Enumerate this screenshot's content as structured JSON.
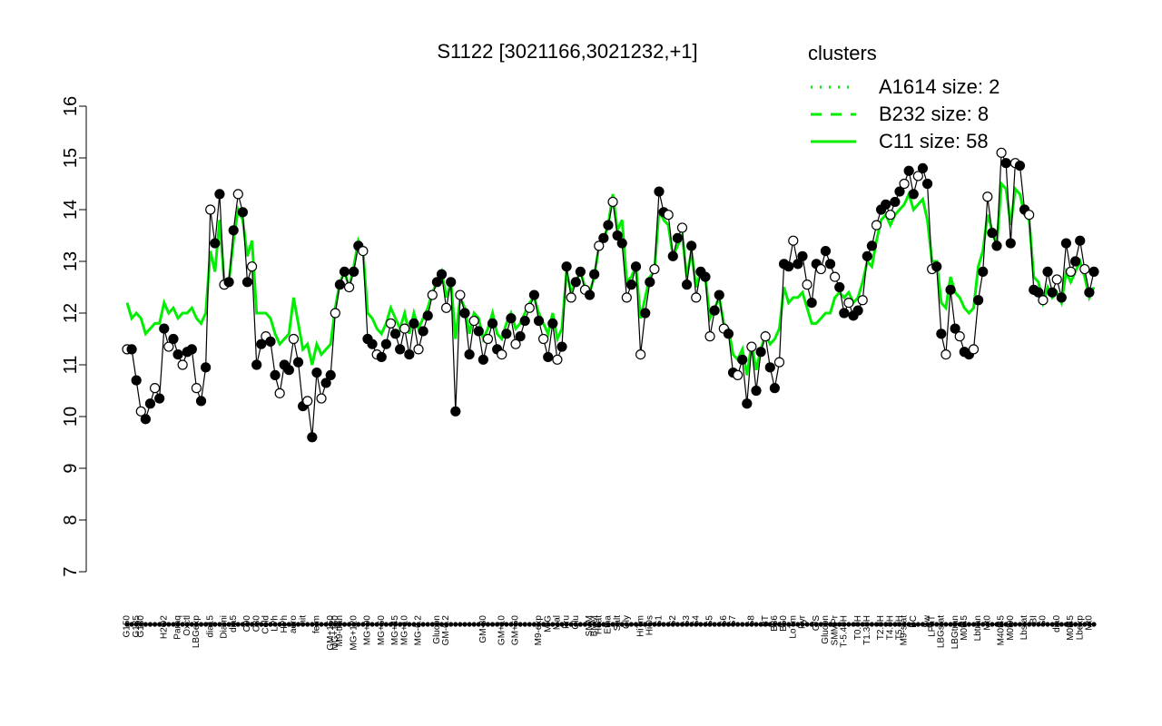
{
  "chart_data": {
    "type": "line",
    "title": "S1122 [3021166,3021232,+1]",
    "ylim": [
      7,
      16
    ],
    "yticks": [
      7,
      8,
      9,
      10,
      11,
      12,
      13,
      14,
      15,
      16
    ],
    "categories": [
      "G150",
      null,
      "G135",
      "G180",
      null,
      null,
      null,
      null,
      "H2O2",
      null,
      null,
      "Paraq",
      null,
      "Oxctl",
      null,
      "LBGexp",
      null,
      null,
      "dia15",
      null,
      null,
      "Diami",
      null,
      "dia5",
      null,
      null,
      "C90",
      null,
      "C30",
      null,
      "Cold",
      null,
      "LPh",
      null,
      "HPh",
      null,
      "aero",
      null,
      "nit",
      null,
      null,
      "ferm",
      null,
      null,
      "GM+150",
      "MG+150",
      "M9-tran",
      null,
      null,
      "MG+120",
      null,
      null,
      "MG+90",
      null,
      null,
      "MG+60",
      null,
      null,
      "MG+45",
      null,
      "MG+10",
      null,
      null,
      "MG-0.2",
      null,
      null,
      null,
      "Glucon",
      null,
      "GM-0.2",
      null,
      null,
      null,
      null,
      null,
      null,
      null,
      "GM-30",
      null,
      null,
      null,
      "GM+10",
      null,
      null,
      "GM+60",
      null,
      null,
      null,
      null,
      "M9-exp",
      null,
      "M/G",
      null,
      "Mal",
      null,
      "Fru",
      null,
      "Glu",
      null,
      null,
      "SMM",
      "BMM",
      "Heat",
      null,
      "Etha",
      null,
      "Salt",
      null,
      "Gly",
      null,
      null,
      "HiTm",
      null,
      "HiOs",
      null,
      "S1",
      null,
      null,
      "S2",
      null,
      null,
      "S3",
      null,
      "S4",
      null,
      null,
      "S5",
      null,
      null,
      "S6",
      null,
      "S7",
      null,
      null,
      null,
      "S8",
      null,
      null,
      "BT",
      null,
      "B36",
      null,
      "B60",
      null,
      "LoTm",
      null,
      "Pyr",
      null,
      null,
      "G/S",
      null,
      "Glucon",
      null,
      "SMMPr",
      null,
      "T-5.40H",
      null,
      null,
      "T0.0H",
      null,
      "T1.30H",
      null,
      null,
      "T2.0H",
      null,
      "T4.0H",
      null,
      "T5.0H",
      "M9-stat",
      null,
      "BC",
      null,
      null,
      "Sw",
      "LPhT",
      null,
      "LBGstat",
      null,
      null,
      "LBGtran",
      null,
      "M0t45",
      null,
      null,
      "Lbtran",
      null,
      "Mt0",
      null,
      null,
      "M40t45",
      null,
      "M0t90",
      null,
      null,
      "Lbstat",
      null,
      "BI",
      null,
      "S0",
      null,
      null,
      "dia0",
      null,
      null,
      "M0t45",
      null,
      "Lbexp",
      null,
      "Mt0",
      null
    ],
    "series": [
      {
        "color": "#000000",
        "values": [
          11.3,
          11.3,
          10.7,
          10.1,
          9.95,
          10.25,
          10.55,
          10.35,
          11.7,
          11.35,
          11.5,
          11.2,
          11.0,
          11.25,
          11.3,
          10.55,
          10.3,
          10.95,
          14.0,
          13.35,
          14.3,
          12.55,
          12.6,
          13.6,
          14.3,
          13.95,
          12.6,
          12.9,
          11.0,
          11.4,
          11.55,
          11.45,
          10.8,
          10.45,
          11.0,
          10.9,
          11.5,
          11.05,
          10.2,
          10.3,
          9.6,
          10.85,
          10.35,
          10.65,
          10.8,
          12.0,
          12.55,
          12.8,
          12.5,
          12.8,
          13.3,
          13.2,
          11.5,
          11.4,
          11.2,
          11.15,
          11.4,
          11.8,
          11.6,
          11.3,
          11.7,
          11.2,
          11.8,
          11.3,
          11.65,
          11.95,
          12.35,
          12.6,
          12.75,
          12.1,
          12.6,
          10.1,
          12.35,
          12.0,
          11.2,
          11.85,
          11.65,
          11.1,
          11.5,
          11.8,
          11.3,
          11.2,
          11.6,
          11.9,
          11.4,
          11.55,
          11.85,
          12.1,
          12.35,
          11.85,
          11.5,
          11.15,
          11.8,
          11.1,
          11.35,
          12.9,
          12.3,
          12.6,
          12.8,
          12.45,
          12.35,
          12.75,
          13.3,
          13.45,
          13.7,
          14.15,
          13.5,
          13.35,
          12.3,
          12.55,
          12.9,
          11.2,
          12.0,
          12.6,
          12.85,
          14.35,
          13.95,
          13.9,
          13.1,
          13.45,
          13.65,
          12.55,
          13.3,
          12.3,
          12.8,
          12.7,
          11.55,
          12.05,
          12.35,
          11.7,
          11.6,
          10.85,
          10.8,
          11.1,
          10.25,
          11.35,
          10.5,
          11.25,
          11.55,
          10.95,
          10.55,
          11.05,
          12.95,
          12.9,
          13.4,
          12.95,
          13.1,
          12.55,
          12.2,
          12.95,
          12.85,
          13.2,
          12.95,
          12.7,
          12.5,
          12.0,
          12.2,
          11.95,
          12.05,
          12.25,
          13.1,
          13.3,
          13.7,
          14.0,
          14.1,
          13.9,
          14.15,
          14.35,
          14.5,
          14.75,
          14.3,
          14.65,
          14.8,
          14.5,
          12.85,
          12.9,
          11.6,
          11.2,
          12.45,
          11.7,
          11.55,
          11.25,
          11.2,
          11.3,
          12.25,
          12.8,
          14.25,
          13.55,
          13.3,
          15.1,
          14.9,
          13.35,
          14.9,
          14.85,
          14.0,
          13.9,
          12.45,
          12.4,
          12.25,
          12.8,
          12.4,
          12.65,
          12.3,
          13.35,
          12.8,
          13.0,
          13.4,
          12.85,
          12.4,
          12.8
        ]
      },
      {
        "name": "C11 size: 58",
        "color": "#00ee00",
        "values": [
          12.2,
          11.9,
          12.0,
          11.9,
          11.6,
          11.7,
          11.8,
          11.8,
          12.2,
          12.0,
          12.1,
          11.9,
          12.0,
          12.0,
          12.1,
          11.9,
          11.8,
          12.0,
          13.2,
          12.8,
          13.8,
          12.6,
          12.6,
          13.4,
          14.0,
          13.8,
          13.1,
          13.4,
          12.0,
          12.0,
          12.0,
          11.9,
          11.6,
          11.4,
          11.5,
          11.6,
          12.3,
          11.8,
          11.3,
          11.4,
          11.0,
          11.4,
          11.2,
          11.3,
          11.4,
          12.1,
          12.6,
          12.8,
          12.5,
          12.9,
          13.4,
          13.2,
          12.0,
          11.9,
          11.7,
          11.6,
          11.8,
          12.1,
          11.9,
          11.7,
          12.0,
          11.6,
          12.0,
          11.7,
          11.9,
          12.1,
          12.4,
          12.6,
          12.8,
          12.3,
          12.6,
          11.5,
          12.3,
          12.1,
          11.6,
          12.0,
          11.9,
          11.5,
          11.7,
          12.0,
          11.6,
          11.5,
          11.8,
          12.0,
          11.7,
          11.8,
          12.0,
          12.2,
          12.3,
          12.0,
          11.8,
          11.6,
          12.0,
          11.5,
          11.7,
          12.8,
          12.4,
          12.6,
          12.8,
          12.5,
          12.4,
          12.7,
          13.3,
          13.4,
          13.7,
          14.3,
          13.6,
          13.8,
          12.6,
          12.7,
          12.9,
          11.9,
          12.3,
          12.7,
          12.8,
          14.0,
          13.8,
          13.7,
          13.1,
          13.3,
          13.5,
          12.7,
          13.2,
          12.5,
          12.8,
          12.7,
          11.9,
          12.1,
          12.3,
          11.8,
          11.7,
          11.2,
          11.1,
          11.3,
          10.8,
          11.4,
          10.9,
          11.3,
          11.6,
          11.4,
          11.5,
          11.7,
          12.5,
          12.2,
          12.3,
          12.3,
          12.4,
          12.1,
          11.8,
          11.8,
          11.9,
          12.0,
          12.0,
          12.3,
          12.4,
          12.3,
          12.4,
          12.2,
          12.3,
          12.6,
          13.0,
          12.9,
          13.4,
          13.8,
          13.9,
          13.7,
          13.9,
          14.0,
          14.1,
          14.3,
          14.0,
          14.1,
          14.2,
          13.8,
          13.0,
          13.0,
          12.2,
          12.1,
          12.7,
          12.4,
          12.3,
          12.1,
          12.0,
          12.1,
          12.9,
          13.2,
          13.9,
          13.6,
          13.3,
          14.5,
          14.4,
          13.7,
          14.4,
          14.3,
          13.9,
          13.8,
          12.7,
          12.6,
          12.2,
          12.5,
          12.3,
          12.4,
          12.2,
          12.8,
          12.6,
          12.8,
          13.0,
          12.7,
          12.3,
          12.5
        ]
      }
    ],
    "legend": {
      "title": "clusters",
      "color": "#00ee00",
      "entries": [
        {
          "name": "A1614 size: 2",
          "style": "dotted"
        },
        {
          "name": "B232 size: 8",
          "style": "dashed"
        }
      ]
    }
  }
}
